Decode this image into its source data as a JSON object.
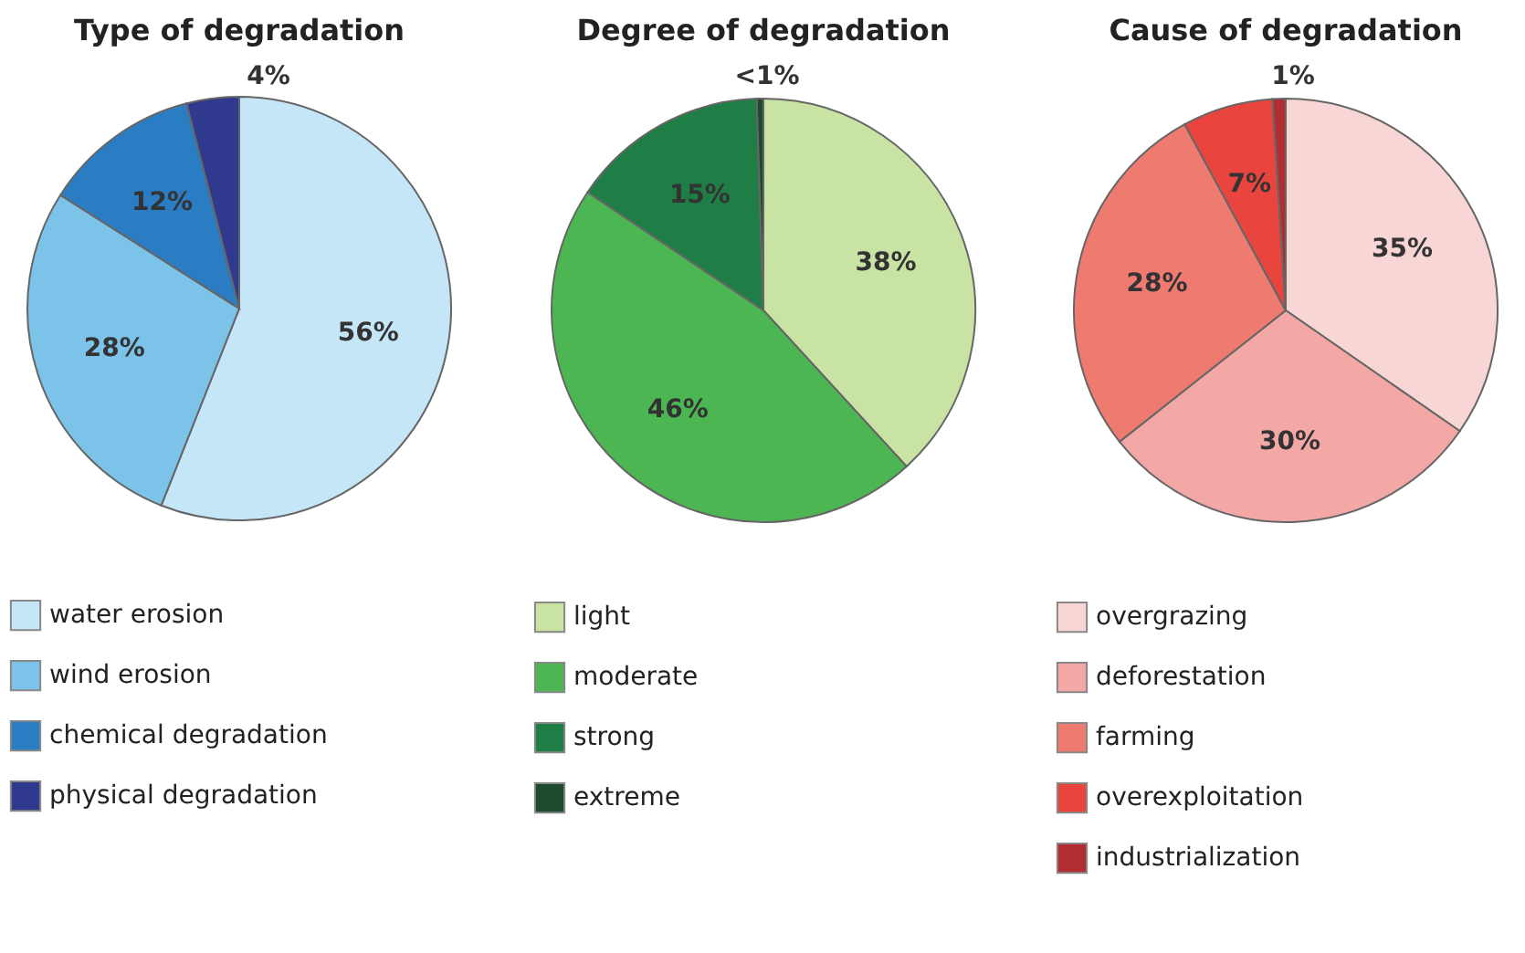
{
  "chart_data": [
    {
      "type": "pie",
      "title": "Type of degradation",
      "categories": [
        "water erosion",
        "wind erosion",
        "chemical degradation",
        "physical degradation"
      ],
      "values": [
        56,
        28,
        12,
        4
      ],
      "value_labels": [
        "56%",
        "28%",
        "12%",
        "4%"
      ],
      "colors": [
        "#c5e6f7",
        "#7cc3ea",
        "#2a7dc3",
        "#2f3a8f"
      ],
      "legend": "bottom"
    },
    {
      "type": "pie",
      "title": "Degree of degradation",
      "categories": [
        "light",
        "moderate",
        "strong",
        "extreme"
      ],
      "values": [
        38,
        46,
        15,
        0.5
      ],
      "value_labels": [
        "38%",
        "46%",
        "15%",
        "<1%"
      ],
      "colors": [
        "#c8e3a3",
        "#4cb752",
        "#1f7e45",
        "#1d4a2f"
      ],
      "legend": "bottom"
    },
    {
      "type": "pie",
      "title": "Cause of degradation",
      "categories": [
        "overgrazing",
        "deforestation",
        "farming",
        "overexploitation",
        "industrialization"
      ],
      "values": [
        35,
        30,
        28,
        7,
        1
      ],
      "value_labels": [
        "35%",
        "30%",
        "28%",
        "7%",
        "1%"
      ],
      "colors": [
        "#f9d6d6",
        "#f3a8a6",
        "#ef7a6f",
        "#e9453e",
        "#b22d31"
      ],
      "legend": "bottom"
    }
  ]
}
